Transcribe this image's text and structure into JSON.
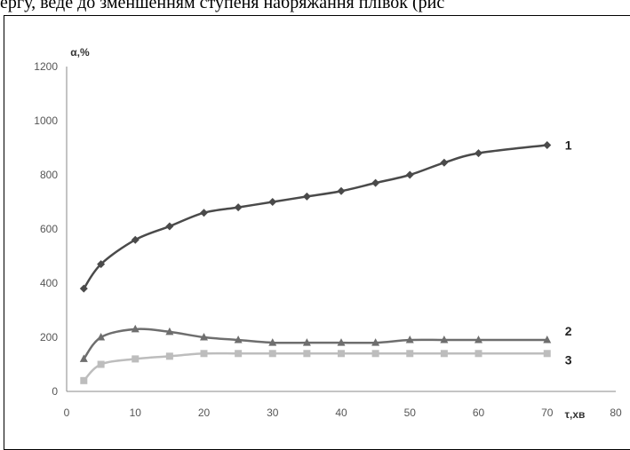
{
  "caption": "ергу, веде до зменшенням ступеня набряжання плівок (рис",
  "chart_data": {
    "type": "line",
    "ylabel": "α,%",
    "xlabel": "τ,хв",
    "xlim": [
      0,
      80
    ],
    "ylim": [
      0,
      1200
    ],
    "x_ticks": [
      "0",
      "10",
      "20",
      "30",
      "40",
      "50",
      "60",
      "70",
      "80"
    ],
    "y_ticks": [
      "0",
      "200",
      "400",
      "600",
      "800",
      "1000",
      "1200"
    ],
    "grid": false,
    "series": [
      {
        "name": "1",
        "marker": "diamond",
        "color": "#4a4a4a",
        "points": [
          [
            2.5,
            380
          ],
          [
            5,
            470
          ],
          [
            10,
            560
          ],
          [
            15,
            610
          ],
          [
            20,
            660
          ],
          [
            25,
            680
          ],
          [
            30,
            700
          ],
          [
            35,
            720
          ],
          [
            40,
            740
          ],
          [
            45,
            770
          ],
          [
            50,
            800
          ],
          [
            55,
            845
          ],
          [
            60,
            880
          ],
          [
            70,
            910
          ]
        ]
      },
      {
        "name": "2",
        "marker": "triangle",
        "color": "#6e6e6e",
        "points": [
          [
            2.5,
            120
          ],
          [
            5,
            200
          ],
          [
            10,
            230
          ],
          [
            15,
            220
          ],
          [
            20,
            200
          ],
          [
            25,
            190
          ],
          [
            30,
            180
          ],
          [
            35,
            180
          ],
          [
            40,
            180
          ],
          [
            45,
            180
          ],
          [
            50,
            190
          ],
          [
            55,
            190
          ],
          [
            60,
            190
          ],
          [
            70,
            190
          ]
        ]
      },
      {
        "name": "3",
        "marker": "square",
        "color": "#bdbdbd",
        "points": [
          [
            2.5,
            40
          ],
          [
            5,
            100
          ],
          [
            10,
            120
          ],
          [
            15,
            130
          ],
          [
            20,
            140
          ],
          [
            25,
            140
          ],
          [
            30,
            140
          ],
          [
            35,
            140
          ],
          [
            40,
            140
          ],
          [
            45,
            140
          ],
          [
            50,
            140
          ],
          [
            55,
            140
          ],
          [
            60,
            140
          ],
          [
            70,
            140
          ]
        ]
      }
    ]
  }
}
